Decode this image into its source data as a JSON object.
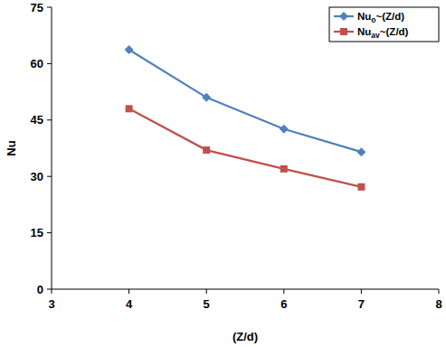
{
  "chart_data": {
    "type": "line",
    "x_label": "(Z/d)",
    "y_label": "Nu",
    "x": [
      4,
      5,
      6,
      7
    ],
    "series": [
      {
        "name": "Nuo~(Z/d)",
        "color": "#4f81bd",
        "marker": "diamond",
        "values": [
          63.7,
          51,
          42.6,
          36.5
        ]
      },
      {
        "name": "Nuav~(Z/d)",
        "color": "#c0504d",
        "marker": "square",
        "values": [
          48,
          37,
          32,
          27.2
        ]
      }
    ],
    "xlim": [
      3,
      8
    ],
    "xticks": [
      3,
      4,
      5,
      6,
      7,
      8
    ],
    "ylim": [
      0,
      75
    ],
    "yticks": [
      0,
      15,
      30,
      45,
      60,
      75
    ],
    "grid": false,
    "legend": "top-right"
  }
}
